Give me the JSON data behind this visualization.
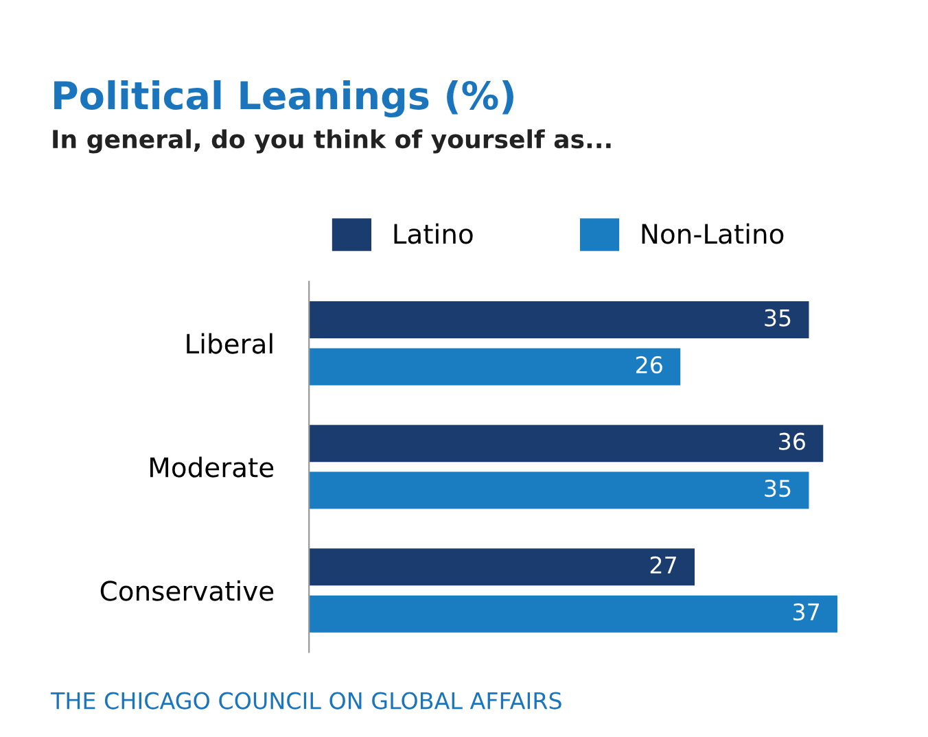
{
  "chart_data": {
    "type": "bar",
    "orientation": "horizontal",
    "title": "Political Leanings (%)",
    "subtitle": "In general, do you think of yourself as...",
    "categories": [
      "Liberal",
      "Moderate",
      "Conservative"
    ],
    "series": [
      {
        "name": "Latino",
        "color": "#1b3c6e",
        "values": [
          35,
          36,
          27
        ]
      },
      {
        "name": "Non-Latino",
        "color": "#1a7cc1",
        "values": [
          26,
          35,
          37
        ]
      }
    ],
    "data_labels": true,
    "legend": "top",
    "grid": false,
    "tick_labels": "y",
    "annotations": [
      "THE CHICAGO COUNCIL ON GLOBAL AFFAIRS"
    ]
  }
}
